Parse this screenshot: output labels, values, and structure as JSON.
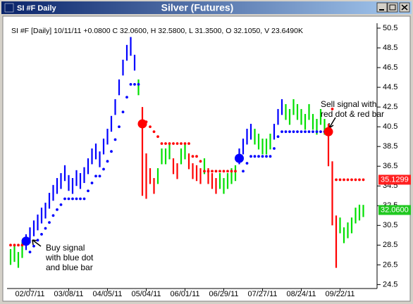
{
  "chart_data": {
    "type": "ohlc",
    "window_title": "SI #F Daily",
    "title": "Silver (Futures)",
    "info": "SI #F [Daily] 10/11/11  +0.0800 C 32.0600, H 32.5800, L 31.3500, O 32.1050, V 23.6490K",
    "categories": [
      null,
      null,
      null,
      null,
      null,
      "02/07/11",
      null,
      null,
      null,
      null,
      null,
      null,
      null,
      null,
      null,
      "03/08/11",
      null,
      null,
      null,
      null,
      null,
      null,
      null,
      null,
      null,
      "04/05/11",
      null,
      null,
      null,
      null,
      null,
      null,
      null,
      null,
      null,
      "05/04/11",
      null,
      null,
      null,
      null,
      null,
      null,
      null,
      null,
      null,
      "06/01/11",
      null,
      null,
      null,
      null,
      null,
      null,
      null,
      null,
      null,
      "06/29/11",
      null,
      null,
      null,
      null,
      null,
      null,
      null,
      null,
      null,
      "07/27/11",
      null,
      null,
      null,
      null,
      null,
      null,
      null,
      null,
      null,
      "08/24/11",
      null,
      null,
      null,
      null,
      null,
      null,
      null,
      null,
      null,
      "09/22/11",
      null,
      null,
      null,
      null,
      null,
      null
    ],
    "high": [
      28.1,
      28.4,
      27.8,
      28.8,
      29.6,
      30.3,
      31.0,
      31.6,
      32.3,
      32.8,
      33.8,
      34.6,
      35.3,
      35.8,
      36.6,
      35.6,
      35.3,
      36.1,
      35.8,
      36.4,
      37.3,
      38.3,
      38.8,
      38.0,
      39.3,
      40.3,
      41.6,
      43.3,
      45.3,
      47.3,
      48.8,
      49.6,
      47.8,
      45.3,
      42.5,
      37.8,
      36.3,
      35.3,
      36.3,
      38.3,
      38.3,
      38.8,
      37.3,
      36.8,
      38.3,
      38.8,
      37.8,
      36.8,
      36.6,
      36.3,
      37.3,
      36.3,
      35.8,
      35.3,
      35.8,
      35.3,
      35.8,
      36.3,
      36.6,
      38.3,
      39.3,
      40.3,
      40.8,
      40.3,
      39.8,
      39.3,
      39.3,
      39.8,
      40.8,
      42.3,
      43.3,
      42.8,
      42.3,
      43.3,
      42.8,
      42.3,
      41.8,
      42.8,
      41.8,
      41.3,
      42.3,
      41.3,
      40.8,
      37.0,
      31.5,
      31.3,
      30.3,
      30.8,
      31.3,
      32.3,
      32.6,
      32.58
    ],
    "low": [
      26.5,
      26.8,
      26.2,
      27.2,
      28.0,
      28.7,
      29.4,
      30.0,
      30.7,
      31.2,
      32.2,
      33.0,
      33.7,
      34.2,
      35.0,
      34.0,
      33.7,
      34.5,
      34.2,
      34.8,
      35.7,
      36.7,
      37.2,
      36.4,
      37.7,
      38.7,
      40.0,
      41.7,
      43.7,
      45.7,
      47.2,
      47.7,
      46.2,
      43.7,
      33.5,
      33.2,
      34.7,
      33.7,
      34.7,
      36.7,
      36.7,
      37.2,
      35.7,
      35.2,
      36.7,
      37.2,
      36.2,
      35.2,
      35.0,
      34.7,
      35.7,
      34.7,
      34.2,
      33.7,
      34.2,
      33.7,
      34.2,
      34.7,
      35.0,
      36.7,
      37.7,
      38.7,
      39.2,
      38.7,
      38.2,
      37.7,
      37.7,
      38.2,
      39.2,
      40.7,
      41.7,
      41.2,
      40.7,
      41.7,
      41.2,
      40.7,
      40.2,
      41.2,
      40.2,
      39.7,
      40.7,
      39.7,
      36.5,
      30.5,
      26.2,
      29.7,
      28.7,
      29.2,
      29.7,
      30.7,
      31.0,
      31.35
    ],
    "bar_colors": [
      "#00e000",
      "#00e000",
      "#00e000",
      "#00e000",
      "#0000ff",
      "#0000ff",
      "#0000ff",
      "#0000ff",
      "#0000ff",
      "#0000ff",
      "#0000ff",
      "#0000ff",
      "#0000ff",
      "#0000ff",
      "#0000ff",
      "#0000ff",
      "#0000ff",
      "#0000ff",
      "#0000ff",
      "#0000ff",
      "#0000ff",
      "#0000ff",
      "#0000ff",
      "#0000ff",
      "#0000ff",
      "#0000ff",
      "#0000ff",
      "#0000ff",
      "#0000ff",
      "#0000ff",
      "#0000ff",
      "#0000ff",
      "#0000ff",
      "#00e000",
      "#ff0000",
      "#ff0000",
      "#ff0000",
      "#ff0000",
      "#00e000",
      "#00e000",
      "#00e000",
      "#00e000",
      "#ff0000",
      "#ff0000",
      "#00e000",
      "#00e000",
      "#ff0000",
      "#ff0000",
      "#ff0000",
      "#ff0000",
      "#00e000",
      "#ff0000",
      "#ff0000",
      "#ff0000",
      "#00e000",
      "#00e000",
      "#00e000",
      "#00e000",
      "#00e000",
      "#0000ff",
      "#0000ff",
      "#0000ff",
      "#0000ff",
      "#00e000",
      "#00e000",
      "#00e000",
      "#00e000",
      "#00e000",
      "#0000ff",
      "#0000ff",
      "#0000ff",
      "#00e000",
      "#00e000",
      "#00e000",
      "#00e000",
      "#00e000",
      "#00e000",
      "#00e000",
      "#00e000",
      "#00e000",
      "#00e000",
      "#00e000",
      "#ff0000",
      "#ff0000",
      "#ff0000",
      "#00e000",
      "#00e000",
      "#00e000",
      "#00e000",
      "#00e000",
      "#00e000",
      "#00e000"
    ],
    "series": [
      {
        "color": "#ff0000",
        "size": "dot",
        "values": [
          28.5,
          28.5,
          28.5,
          28.5,
          null,
          null,
          null,
          null,
          null,
          null,
          null,
          null,
          null,
          null,
          null,
          null,
          null,
          null,
          null,
          null,
          null,
          null,
          null,
          null,
          null,
          null,
          null,
          null,
          null,
          null,
          null,
          null,
          null,
          null,
          null,
          41.0,
          40.5,
          40.0,
          39.5,
          38.8,
          38.8,
          38.8,
          38.8,
          38.8,
          38.8,
          38.8,
          38.8,
          37.5,
          37.5,
          37.0,
          36.0,
          36.0,
          36.0,
          36.0,
          36.0,
          36.0,
          36.0,
          36.0,
          36.0,
          null,
          null,
          null,
          null,
          null,
          null,
          null,
          null,
          null,
          null,
          null,
          null,
          null,
          null,
          null,
          null,
          null,
          null,
          null,
          null,
          null,
          null,
          null,
          null,
          42.3,
          35.1299,
          35.1299,
          35.1299,
          35.1299,
          35.1299,
          35.1299,
          35.1299,
          35.1299
        ]
      },
      {
        "color": "#0000ff",
        "size": "dot",
        "values": [
          null,
          null,
          null,
          null,
          null,
          27.8,
          28.4,
          29.0,
          29.6,
          30.2,
          30.8,
          31.5,
          32.1,
          32.6,
          33.2,
          33.2,
          33.2,
          33.2,
          33.2,
          33.2,
          34.0,
          34.8,
          35.5,
          35.5,
          36.2,
          37.0,
          38.0,
          39.2,
          40.5,
          42.0,
          43.5,
          44.8,
          44.8,
          44.8,
          null,
          null,
          null,
          null,
          null,
          null,
          null,
          null,
          null,
          null,
          null,
          null,
          null,
          null,
          null,
          null,
          null,
          null,
          null,
          null,
          null,
          null,
          null,
          null,
          null,
          null,
          36.0,
          36.8,
          37.5,
          37.5,
          37.5,
          37.5,
          37.5,
          37.5,
          38.3,
          39.5,
          40.0,
          40.0,
          40.0,
          40.0,
          40.0,
          40.0,
          40.0,
          40.0,
          40.0,
          40.0,
          40.0,
          40.0,
          null,
          null,
          null,
          null,
          null,
          null,
          null,
          null,
          null,
          null
        ]
      },
      {
        "color": "#0000ff",
        "size": "signal",
        "values": [
          null,
          null,
          null,
          null,
          28.9,
          null,
          null,
          null,
          null,
          null,
          null,
          null,
          null,
          null,
          null,
          null,
          null,
          null,
          null,
          null,
          null,
          null,
          null,
          null,
          null,
          null,
          null,
          null,
          null,
          null,
          null,
          null,
          null,
          null,
          null,
          null,
          null,
          null,
          null,
          null,
          null,
          null,
          null,
          null,
          null,
          null,
          null,
          null,
          null,
          null,
          null,
          null,
          null,
          null,
          null,
          null,
          null,
          null,
          null,
          37.3,
          null,
          null,
          null,
          null,
          null,
          null,
          null,
          null,
          null,
          null,
          null,
          null,
          null,
          null,
          null,
          null,
          null,
          null,
          null,
          null,
          null,
          null,
          null,
          null,
          null,
          null,
          null,
          null,
          null,
          null,
          null,
          null
        ]
      },
      {
        "color": "#ff0000",
        "size": "signal",
        "values": [
          null,
          null,
          null,
          null,
          null,
          null,
          null,
          null,
          null,
          null,
          null,
          null,
          null,
          null,
          null,
          null,
          null,
          null,
          null,
          null,
          null,
          null,
          null,
          null,
          null,
          null,
          null,
          null,
          null,
          null,
          null,
          null,
          null,
          null,
          40.8,
          null,
          null,
          null,
          null,
          null,
          null,
          null,
          null,
          null,
          null,
          null,
          null,
          null,
          null,
          null,
          null,
          null,
          null,
          null,
          null,
          null,
          null,
          null,
          null,
          null,
          null,
          null,
          null,
          null,
          null,
          null,
          null,
          null,
          null,
          null,
          null,
          null,
          null,
          null,
          null,
          null,
          null,
          null,
          null,
          null,
          null,
          null,
          40.0,
          null,
          null,
          null,
          null,
          null,
          null,
          null,
          null,
          null
        ]
      }
    ],
    "price_tags": [
      {
        "value": 35.1299,
        "color": "#ff2020"
      },
      {
        "value": {
          "value": 32.06,
          "label": "32.0600"
        },
        "color": "#20c820"
      }
    ],
    "annotations": [
      {
        "lines": [
          "Buy signal",
          "with blue dot",
          "and blue bar"
        ]
      },
      {
        "lines": [
          "Sell signal with",
          "red dot & red bar"
        ]
      }
    ],
    "ylim": [
      24.1,
      51
    ],
    "yticks": [
      24.5,
      26.5,
      28.5,
      30.5,
      32.5,
      34.5,
      36.5,
      38.5,
      40.5,
      42.5,
      44.5,
      46.5,
      48.5,
      50.5
    ],
    "grid": false
  }
}
